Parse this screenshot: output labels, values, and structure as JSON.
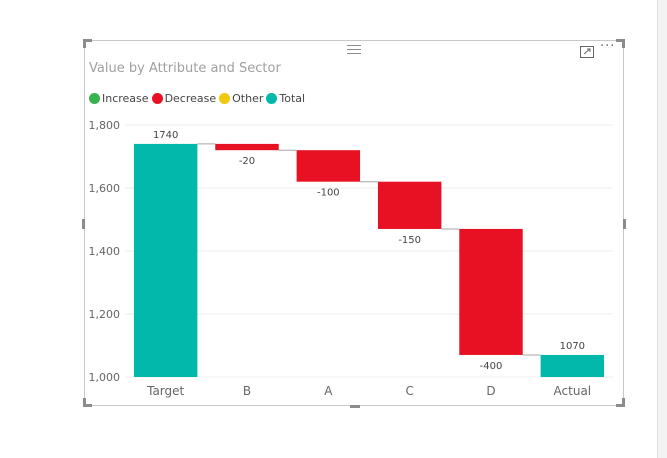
{
  "visual": {
    "title": "Value by Attribute and Sector",
    "focus_icon": "focus-mode-icon",
    "more_icon": "more-options-icon",
    "more_label": "···"
  },
  "legend": {
    "items": [
      {
        "label": "Increase",
        "color": "#37b24d"
      },
      {
        "label": "Decrease",
        "color": "#e81123"
      },
      {
        "label": "Other",
        "color": "#f2c80f"
      },
      {
        "label": "Total",
        "color": "#01b8aa"
      }
    ]
  },
  "chart_data": {
    "type": "waterfall",
    "title": "Value by Attribute and Sector",
    "categories": [
      "Target",
      "B",
      "A",
      "C",
      "D",
      "Actual"
    ],
    "steps": [
      {
        "category": "Target",
        "kind": "Total",
        "start": 0,
        "end": 1740,
        "label": "1740"
      },
      {
        "category": "B",
        "kind": "Decrease",
        "start": 1740,
        "end": 1720,
        "label": "-20"
      },
      {
        "category": "A",
        "kind": "Decrease",
        "start": 1720,
        "end": 1620,
        "label": "-100"
      },
      {
        "category": "C",
        "kind": "Decrease",
        "start": 1620,
        "end": 1470,
        "label": "-150"
      },
      {
        "category": "D",
        "kind": "Decrease",
        "start": 1470,
        "end": 1070,
        "label": "-400"
      },
      {
        "category": "Actual",
        "kind": "Total",
        "start": 0,
        "end": 1070,
        "label": "1070"
      }
    ],
    "ylim": [
      1000,
      1800
    ],
    "yticks": [
      1000,
      1200,
      1400,
      1600,
      1800
    ],
    "ytick_labels": [
      "1,000",
      "1,200",
      "1,400",
      "1,600",
      "1,800"
    ],
    "grid": true,
    "legend_position": "top-left",
    "colors": {
      "Increase": "#37b24d",
      "Decrease": "#e81123",
      "Other": "#f2c80f",
      "Total": "#01b8aa"
    }
  }
}
